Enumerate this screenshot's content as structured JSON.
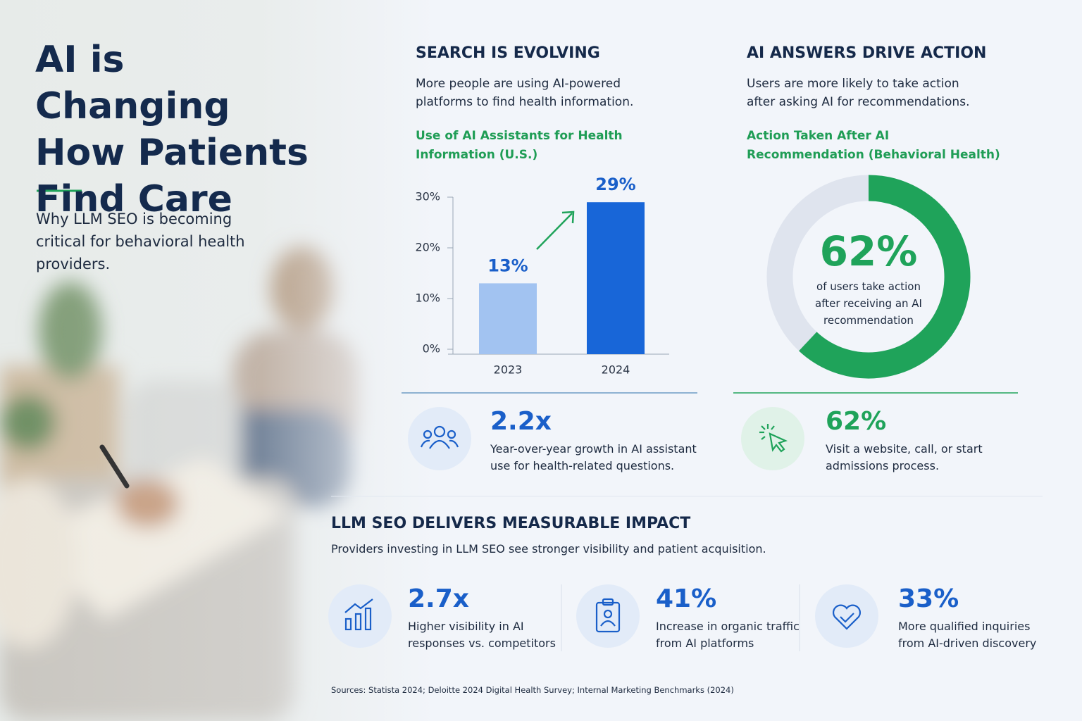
{
  "header": {
    "title": "AI is Changing How Patients Find Care",
    "subtitle": "Why LLM SEO is becoming critical for behavioral health providers."
  },
  "chart_data": [
    {
      "type": "bar",
      "section_title": "SEARCH IS EVOLVING",
      "description": "More people are using AI-powered platforms to find health information.",
      "title": "Use of AI Assistants for Health Information (U.S.)",
      "categories": [
        "2023",
        "2024"
      ],
      "values": [
        13,
        29
      ],
      "value_labels": [
        "13%",
        "29%"
      ],
      "colors": [
        "#a2c3f1",
        "#1866d8"
      ],
      "ylim": [
        0,
        30
      ],
      "yticks": [
        {
          "value": 0,
          "label": "0%"
        },
        {
          "value": 10,
          "label": "10%"
        },
        {
          "value": 20,
          "label": "20%"
        },
        {
          "value": 30,
          "label": "30%"
        }
      ]
    },
    {
      "type": "donut",
      "section_title": "AI ANSWERS DRIVE ACTION",
      "description": "Users are more likely to take action after asking AI for recommendations.",
      "title": "Action Taken After AI Recommendation (Behavioral Health)",
      "values": [
        62
      ],
      "value_labels": [
        "62%"
      ],
      "color": "#1fa35a",
      "center_text": "of users take action after receiving an AI recommendation"
    }
  ],
  "stats": [
    {
      "value": "2.2x",
      "text": "Year-over-year growth in AI assistant use for health-related questions."
    },
    {
      "value": "62%",
      "text": "Visit a website, call, or start admissions process."
    }
  ],
  "impact": {
    "title": "LLM SEO DELIVERS MEASURABLE IMPACT",
    "description": "Providers investing in LLM SEO see stronger visibility and patient acquisition.",
    "items": [
      {
        "value": "2.7x",
        "text": "Higher visibility in AI responses vs. competitors"
      },
      {
        "value": "41%",
        "text": "Increase in organic traffic from AI platforms"
      },
      {
        "value": "33%",
        "text": "More qualified inquiries from AI-driven discovery"
      }
    ]
  },
  "sources": "Sources: Statista 2024; Deloitte 2024 Digital Health Survey; Internal Marketing Benchmarks (2024)"
}
